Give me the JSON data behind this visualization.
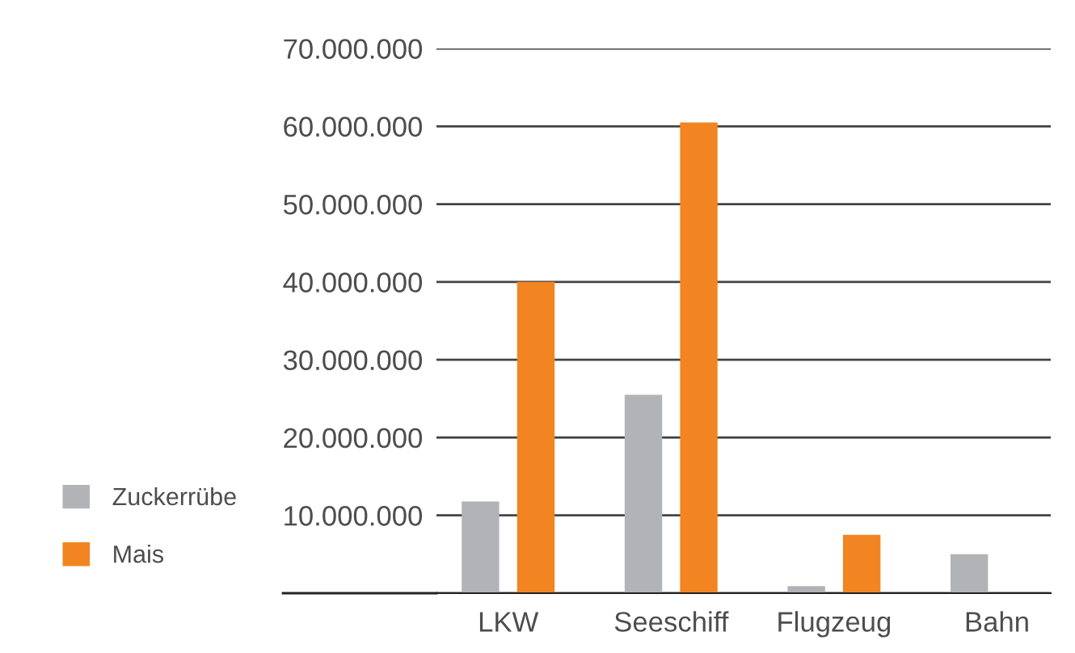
{
  "chart_data": {
    "type": "bar",
    "categories": [
      "LKW",
      "Seeschiff",
      "Flugzeug",
      "Bahn"
    ],
    "series": [
      {
        "name": "Zuckerrübe",
        "color": "#b2b3b6",
        "values": [
          11800000,
          25500000,
          900000,
          5000000
        ]
      },
      {
        "name": "Mais",
        "color": "#f28521",
        "values": [
          40000000,
          60500000,
          7500000,
          null
        ]
      }
    ],
    "ylim": [
      0,
      70000000
    ],
    "yticks": [
      {
        "value": 0,
        "label": null
      },
      {
        "value": 10000000,
        "label": "10.000.000"
      },
      {
        "value": 20000000,
        "label": "20.000.000"
      },
      {
        "value": 30000000,
        "label": "30.000.000"
      },
      {
        "value": 40000000,
        "label": "40.000.000"
      },
      {
        "value": 50000000,
        "label": "50.000.000"
      },
      {
        "value": 60000000,
        "label": "60.000.000"
      },
      {
        "value": 70000000,
        "label": "70.000.000"
      }
    ],
    "grid": "y",
    "legend": "bottom left"
  }
}
